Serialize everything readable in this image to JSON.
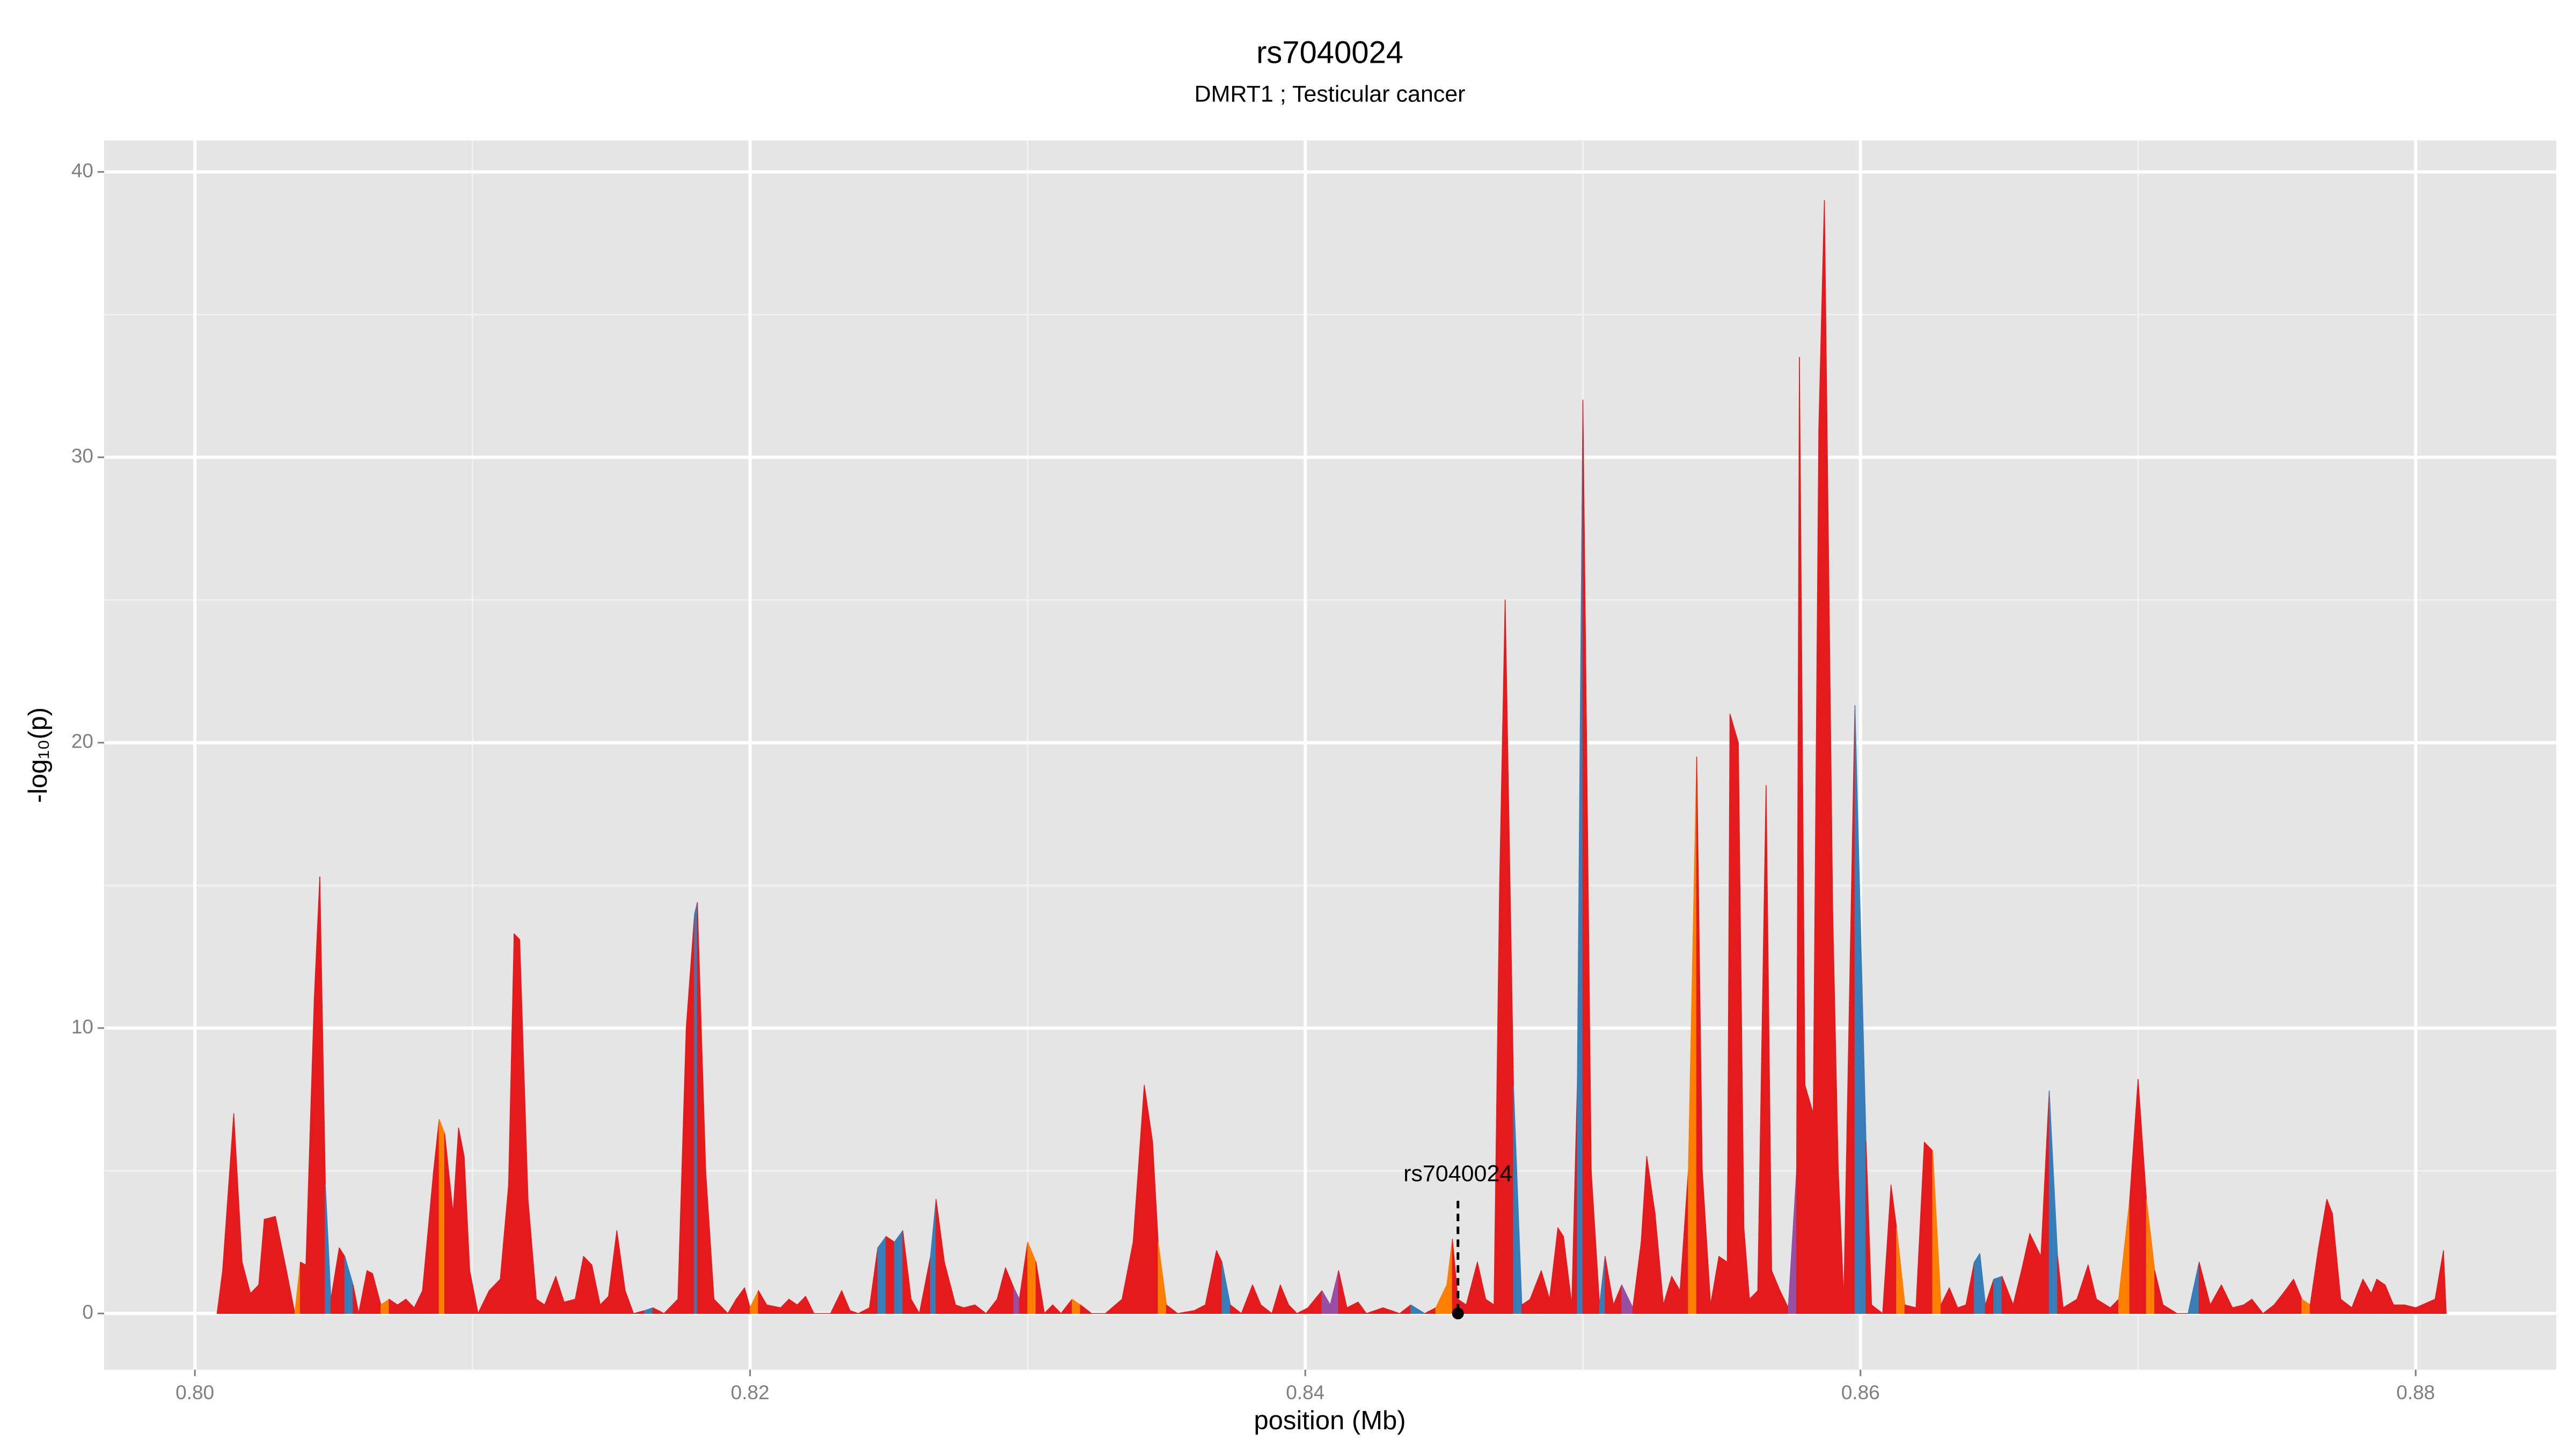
{
  "chart_data": {
    "type": "area",
    "title": "rs7040024",
    "subtitle": "DMRT1 ; Testicular cancer",
    "x_label": "position (Mb)",
    "y_label": "-log₁₀(p)",
    "xlim": [
      0.79673,
      0.88506
    ],
    "ylim": [
      -1.97,
      41.1
    ],
    "xticks": [
      {
        "value": 0.8,
        "label": "0.80"
      },
      0.82,
      0.84,
      0.86,
      0.88
    ],
    "yticks": [
      0,
      10,
      20,
      30,
      40
    ],
    "grid": true,
    "annotation": {
      "text": "rs7040024",
      "x": 0.8455,
      "y": 0
    },
    "x": [
      0.8008,
      0.801,
      0.8014,
      0.8017,
      0.802,
      0.8023,
      0.8025,
      0.8029,
      0.8033,
      0.8036,
      0.8038,
      0.804,
      0.8043,
      0.8045,
      0.8047,
      0.8049,
      0.8052,
      0.8054,
      0.8057,
      0.8059,
      0.8062,
      0.8064,
      0.8067,
      0.807,
      0.8073,
      0.8076,
      0.8079,
      0.8082,
      0.8086,
      0.8088,
      0.809,
      0.8093,
      0.8095,
      0.8097,
      0.8099,
      0.8102,
      0.8106,
      0.811,
      0.8113,
      0.8115,
      0.8117,
      0.812,
      0.8123,
      0.8126,
      0.813,
      0.8133,
      0.8137,
      0.814,
      0.8143,
      0.8146,
      0.8149,
      0.8152,
      0.8155,
      0.8158,
      0.8162,
      0.8165,
      0.8169,
      0.8174,
      0.8177,
      0.818,
      0.8181,
      0.8184,
      0.8187,
      0.8192,
      0.8195,
      0.8198,
      0.82,
      0.8203,
      0.8206,
      0.8211,
      0.8214,
      0.8217,
      0.822,
      0.8223,
      0.8229,
      0.8233,
      0.8236,
      0.8239,
      0.8243,
      0.8246,
      0.8249,
      0.8252,
      0.8255,
      0.8258,
      0.8261,
      0.8265,
      0.8267,
      0.827,
      0.8274,
      0.8277,
      0.8281,
      0.8285,
      0.8289,
      0.8292,
      0.8295,
      0.8297,
      0.83,
      0.8303,
      0.8306,
      0.8309,
      0.8312,
      0.8316,
      0.8319,
      0.8323,
      0.8328,
      0.8334,
      0.8338,
      0.8342,
      0.8345,
      0.8347,
      0.835,
      0.8354,
      0.836,
      0.8364,
      0.8368,
      0.837,
      0.8373,
      0.8377,
      0.8381,
      0.8384,
      0.8388,
      0.8391,
      0.8394,
      0.8397,
      0.8401,
      0.8406,
      0.8409,
      0.8412,
      0.8415,
      0.8419,
      0.8422,
      0.8428,
      0.8434,
      0.8438,
      0.8443,
      0.8447,
      0.8451,
      0.8453,
      0.8455,
      0.8458,
      0.8462,
      0.8465,
      0.8468,
      0.847,
      0.8472,
      0.8475,
      0.8478,
      0.8481,
      0.8485,
      0.8488,
      0.8491,
      0.8493,
      0.8496,
      0.8498,
      0.85,
      0.8503,
      0.8506,
      0.8508,
      0.8511,
      0.8514,
      0.8518,
      0.8521,
      0.8523,
      0.8526,
      0.8529,
      0.8532,
      0.8535,
      0.8538,
      0.8541,
      0.8543,
      0.8546,
      0.8549,
      0.8552,
      0.8553,
      0.8556,
      0.8558,
      0.856,
      0.8563,
      0.8566,
      0.8568,
      0.8571,
      0.8574,
      0.8577,
      0.8578,
      0.858,
      0.8583,
      0.8585,
      0.8587,
      0.859,
      0.8592,
      0.8594,
      0.8598,
      0.8602,
      0.8604,
      0.8608,
      0.8611,
      0.8613,
      0.8616,
      0.862,
      0.8623,
      0.8626,
      0.8629,
      0.8632,
      0.8635,
      0.8638,
      0.8641,
      0.8643,
      0.8645,
      0.8648,
      0.8651,
      0.8655,
      0.8658,
      0.8661,
      0.8665,
      0.8668,
      0.8671,
      0.8673,
      0.8678,
      0.8682,
      0.8685,
      0.869,
      0.8693,
      0.8697,
      0.87,
      0.8703,
      0.8706,
      0.8709,
      0.8714,
      0.8718,
      0.8722,
      0.8726,
      0.873,
      0.8734,
      0.8738,
      0.8741,
      0.8745,
      0.8749,
      0.8753,
      0.8756,
      0.8759,
      0.8762,
      0.8765,
      0.8768,
      0.877,
      0.8773,
      0.8777,
      0.8781,
      0.8784,
      0.8786,
      0.8789,
      0.8792,
      0.8796,
      0.88,
      0.8807,
      0.881,
      0.8811
    ],
    "values": [
      0,
      1.5,
      7,
      1.8,
      0.7,
      1,
      3.3,
      3.4,
      1.5,
      0,
      1.8,
      1.7,
      11,
      15.3,
      4.5,
      0.5,
      2.3,
      2,
      1,
      0,
      1.5,
      1.4,
      0.3,
      0.5,
      0.3,
      0.5,
      0.2,
      0.8,
      5,
      6.8,
      6.3,
      3.5,
      6.5,
      5.5,
      1.5,
      0,
      0.8,
      1.2,
      4.5,
      13.3,
      13.1,
      4,
      0.5,
      0.3,
      1.3,
      0.4,
      0.5,
      2,
      1.7,
      0.3,
      0.6,
      2.9,
      0.8,
      0,
      0.1,
      0.2,
      0,
      0.5,
      10,
      14,
      14.4,
      5,
      0.5,
      0,
      0.5,
      0.9,
      0.2,
      0.8,
      0.3,
      0.2,
      0.5,
      0.3,
      0.6,
      0,
      0,
      0.8,
      0.1,
      0,
      0.2,
      2.3,
      2.7,
      2.5,
      2.9,
      0.5,
      0,
      2,
      4,
      1.8,
      0.3,
      0.2,
      0.3,
      0,
      0.5,
      1.6,
      0.9,
      0.5,
      2.5,
      1.8,
      0,
      0.3,
      0,
      0.5,
      0.3,
      0,
      0,
      0.5,
      2.5,
      8,
      6,
      2.5,
      0.3,
      0,
      0.1,
      0.3,
      2.2,
      1.8,
      0.3,
      0,
      1,
      0.3,
      0,
      1,
      0.3,
      0,
      0.2,
      0.8,
      0.3,
      1.5,
      0.2,
      0.4,
      0,
      0.2,
      0,
      0.3,
      0,
      0.2,
      1,
      2.6,
      0.5,
      0.3,
      1.8,
      0.5,
      0.3,
      15,
      25,
      8,
      0.3,
      0.5,
      1.5,
      0.5,
      3,
      2.7,
      0.3,
      8,
      32,
      5,
      0.3,
      2,
      0.3,
      1,
      0.2,
      2.5,
      5.5,
      3.5,
      0.3,
      1.3,
      0.8,
      5,
      19.5,
      5,
      0.3,
      2,
      1.8,
      21,
      20,
      3,
      0.5,
      0.8,
      18.5,
      1.5,
      0.8,
      0.2,
      5,
      33.5,
      8,
      7,
      31,
      39,
      14,
      5,
      0.5,
      21.3,
      6,
      0.3,
      0,
      4.5,
      3,
      0.3,
      0.2,
      6,
      5.7,
      0.3,
      0.9,
      0.2,
      0.3,
      1.8,
      2.1,
      0.3,
      1.2,
      1.3,
      0.3,
      1.5,
      2.8,
      2,
      7.8,
      2,
      0.2,
      0.5,
      1.7,
      0.5,
      0.2,
      0.5,
      4,
      8.2,
      4,
      1.5,
      0.3,
      0,
      0,
      1.8,
      0.3,
      1,
      0.2,
      0.3,
      0.5,
      0,
      0.3,
      0.8,
      1.2,
      0.5,
      0.3,
      2.3,
      4,
      3.5,
      0.5,
      0.2,
      1.2,
      0.7,
      1.2,
      1,
      0.3,
      0.3,
      0.2,
      0.5,
      2.2,
      0
    ],
    "colors": [
      "#e41a1c",
      "#e41a1c",
      "#e41a1c",
      "#e41a1c",
      "#e41a1c",
      "#e41a1c",
      "#e41a1c",
      "#e41a1c",
      "#e41a1c",
      "#ff7f00",
      "#e41a1c",
      "#e41a1c",
      "#e41a1c",
      "#e41a1c",
      "#377eb8",
      "#e41a1c",
      "#e41a1c",
      "#377eb8",
      "#e41a1c",
      "#e41a1c",
      "#e41a1c",
      "#e41a1c",
      "#ff7f00",
      "#e41a1c",
      "#e41a1c",
      "#e41a1c",
      "#e41a1c",
      "#e41a1c",
      "#e41a1c",
      "#ff7f00",
      "#e41a1c",
      "#e41a1c",
      "#e41a1c",
      "#e41a1c",
      "#e41a1c",
      "#e41a1c",
      "#e41a1c",
      "#e41a1c",
      "#e41a1c",
      "#e41a1c",
      "#e41a1c",
      "#e41a1c",
      "#e41a1c",
      "#e41a1c",
      "#e41a1c",
      "#e41a1c",
      "#e41a1c",
      "#e41a1c",
      "#e41a1c",
      "#e41a1c",
      "#e41a1c",
      "#e41a1c",
      "#e41a1c",
      "#e41a1c",
      "#377eb8",
      "#e41a1c",
      "#e41a1c",
      "#e41a1c",
      "#e41a1c",
      "#377eb8",
      "#e41a1c",
      "#e41a1c",
      "#e41a1c",
      "#e41a1c",
      "#e41a1c",
      "#e41a1c",
      "#ff7f00",
      "#e41a1c",
      "#e41a1c",
      "#e41a1c",
      "#e41a1c",
      "#e41a1c",
      "#e41a1c",
      "#e41a1c",
      "#e41a1c",
      "#e41a1c",
      "#e41a1c",
      "#e41a1c",
      "#e41a1c",
      "#377eb8",
      "#e41a1c",
      "#377eb8",
      "#e41a1c",
      "#e41a1c",
      "#e41a1c",
      "#377eb8",
      "#e41a1c",
      "#e41a1c",
      "#e41a1c",
      "#e41a1c",
      "#e41a1c",
      "#e41a1c",
      "#e41a1c",
      "#e41a1c",
      "#984ea3",
      "#e41a1c",
      "#ff7f00",
      "#e41a1c",
      "#e41a1c",
      "#e41a1c",
      "#e41a1c",
      "#ff7f00",
      "#e41a1c",
      "#e41a1c",
      "#e41a1c",
      "#e41a1c",
      "#e41a1c",
      "#e41a1c",
      "#e41a1c",
      "#ff7f00",
      "#e41a1c",
      "#e41a1c",
      "#e41a1c",
      "#e41a1c",
      "#e41a1c",
      "#377eb8",
      "#e41a1c",
      "#e41a1c",
      "#e41a1c",
      "#e41a1c",
      "#e41a1c",
      "#e41a1c",
      "#e41a1c",
      "#e41a1c",
      "#e41a1c",
      "#984ea3",
      "#984ea3",
      "#e41a1c",
      "#e41a1c",
      "#e41a1c",
      "#e41a1c",
      "#e41a1c",
      "#e41a1c",
      "#377eb8",
      "#e41a1c",
      "#ff7f00",
      "#ff7f00",
      "#e41a1c",
      "#e41a1c",
      "#e41a1c",
      "#e41a1c",
      "#e41a1c",
      "#e41a1c",
      "#e41a1c",
      "#e41a1c",
      "#377eb8",
      "#e41a1c",
      "#e41a1c",
      "#e41a1c",
      "#e41a1c",
      "#e41a1c",
      "#e41a1c",
      "#e41a1c",
      "#377eb8",
      "#e41a1c",
      "#e41a1c",
      "#377eb8",
      "#e41a1c",
      "#e41a1c",
      "#984ea3",
      "#e41a1c",
      "#e41a1c",
      "#e41a1c",
      "#e41a1c",
      "#e41a1c",
      "#e41a1c",
      "#e41a1c",
      "#ff7f00",
      "#e41a1c",
      "#e41a1c",
      "#e41a1c",
      "#e41a1c",
      "#e41a1c",
      "#e41a1c",
      "#e41a1c",
      "#e41a1c",
      "#e41a1c",
      "#e41a1c",
      "#e41a1c",
      "#e41a1c",
      "#e41a1c",
      "#984ea3",
      "#e41a1c",
      "#e41a1c",
      "#e41a1c",
      "#e41a1c",
      "#e41a1c",
      "#e41a1c",
      "#e41a1c",
      "#e41a1c",
      "#e41a1c",
      "#377eb8",
      "#e41a1c",
      "#e41a1c",
      "#e41a1c",
      "#e41a1c",
      "#ff7f00",
      "#e41a1c",
      "#e41a1c",
      "#e41a1c",
      "#ff7f00",
      "#e41a1c",
      "#e41a1c",
      "#e41a1c",
      "#e41a1c",
      "#377eb8",
      "#377eb8",
      "#e41a1c",
      "#377eb8",
      "#e41a1c",
      "#e41a1c",
      "#e41a1c",
      "#e41a1c",
      "#e41a1c",
      "#377eb8",
      "#e41a1c",
      "#e41a1c",
      "#e41a1c",
      "#e41a1c",
      "#e41a1c",
      "#e41a1c",
      "#ff7f00",
      "#e41a1c",
      "#e41a1c",
      "#ff7f00",
      "#e41a1c",
      "#e41a1c",
      "#e41a1c",
      "#377eb8",
      "#e41a1c",
      "#e41a1c",
      "#e41a1c",
      "#e41a1c",
      "#e41a1c",
      "#e41a1c",
      "#e41a1c",
      "#e41a1c",
      "#e41a1c",
      "#e41a1c",
      "#ff7f00",
      "#e41a1c",
      "#e41a1c",
      "#e41a1c",
      "#e41a1c",
      "#e41a1c",
      "#e41a1c",
      "#e41a1c",
      "#e41a1c",
      "#e41a1c",
      "#e41a1c",
      "#e41a1c",
      "#e41a1c",
      "#e41a1c",
      "#e41a1c",
      "#e41a1c",
      "#e41a1c"
    ]
  }
}
